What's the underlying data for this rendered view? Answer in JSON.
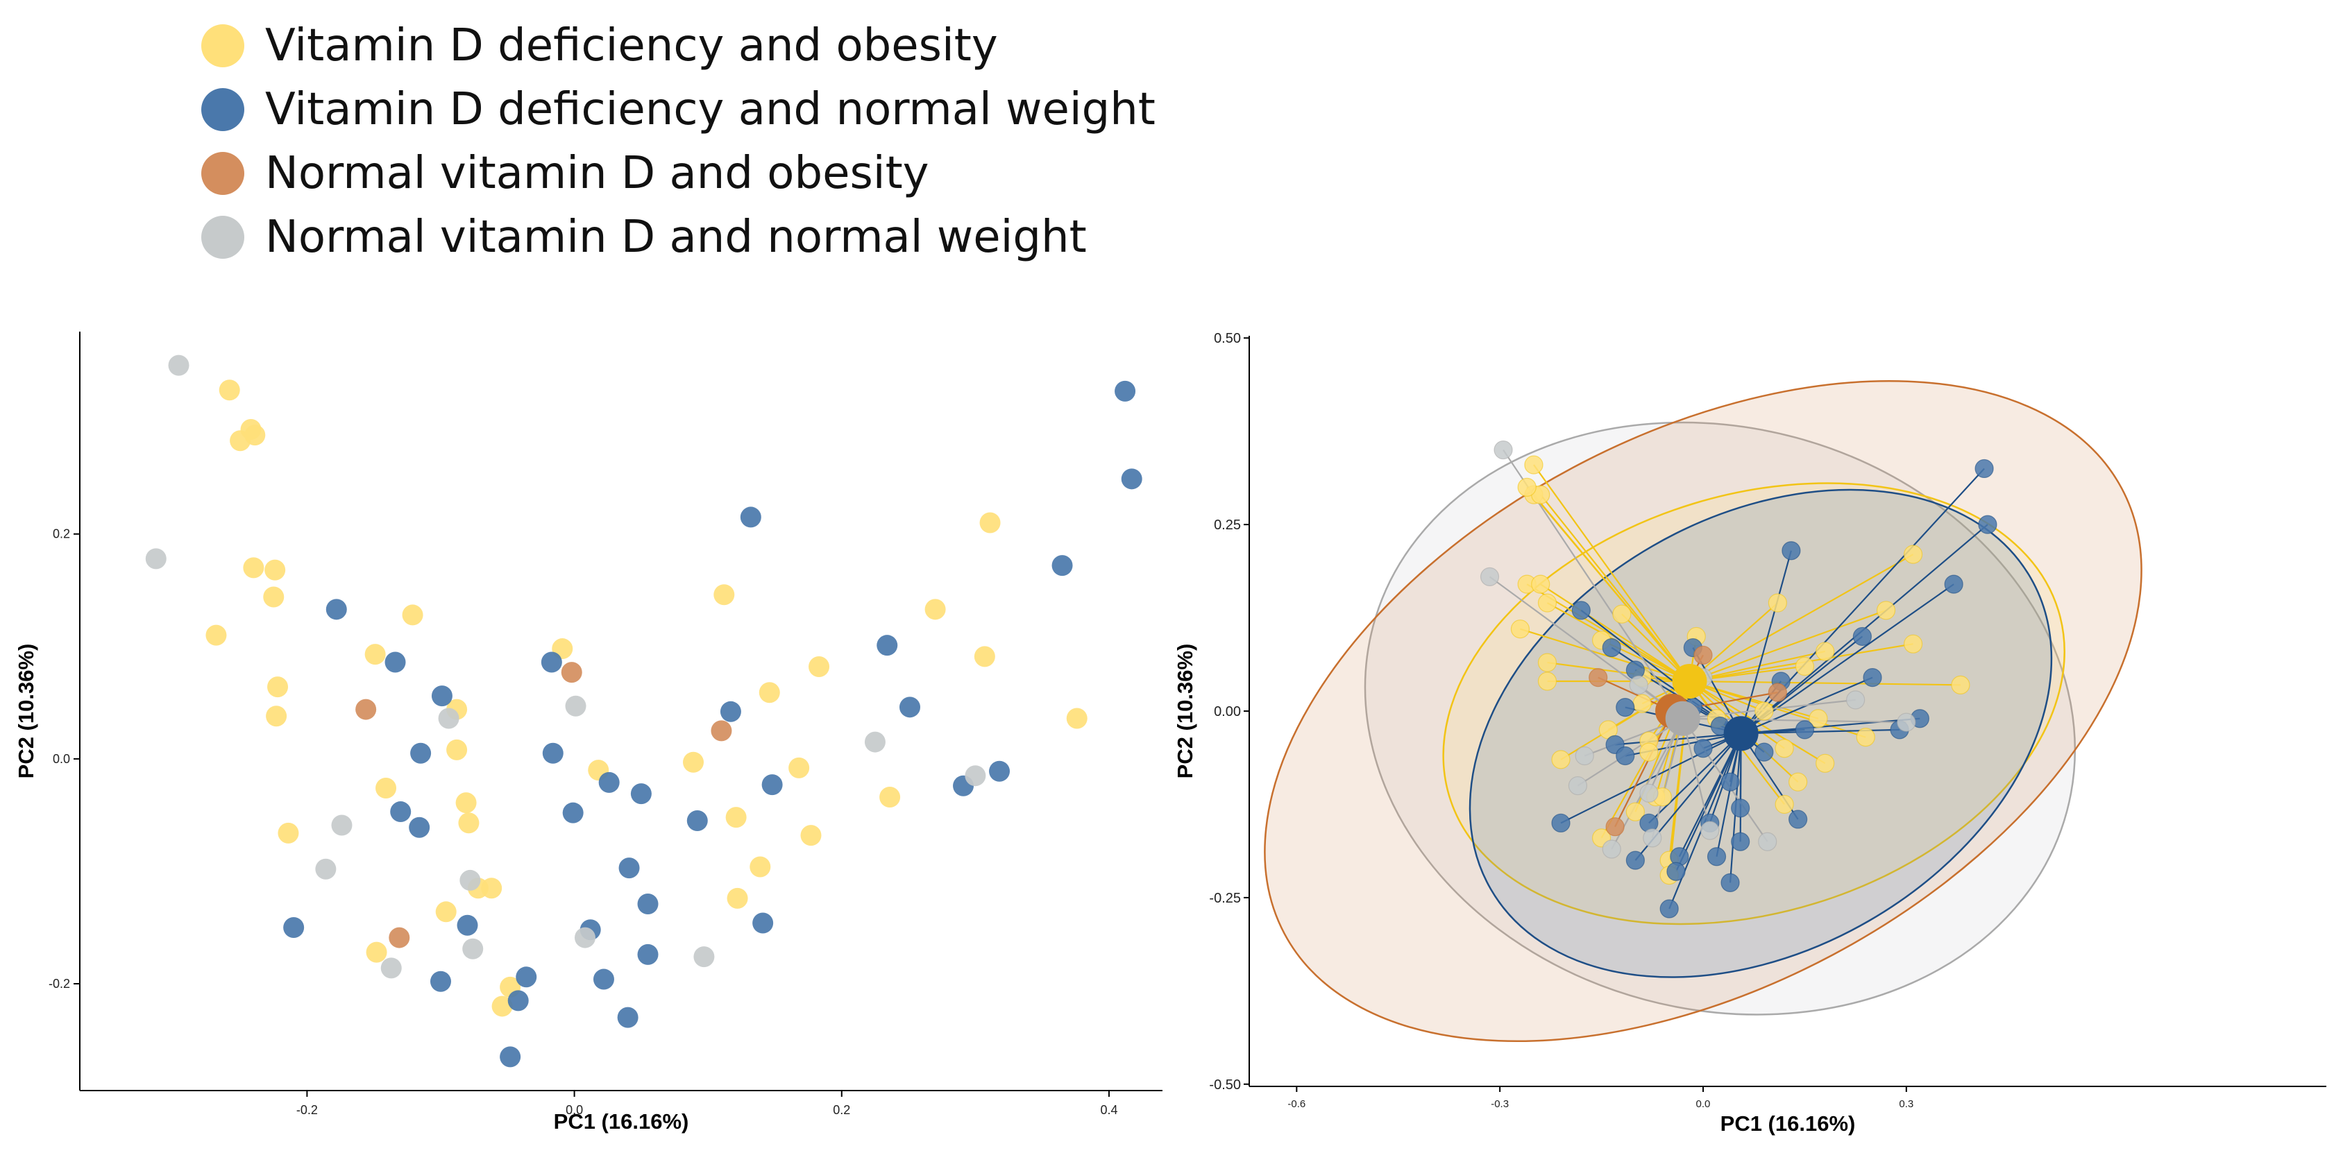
{
  "colors": {
    "vd_obese": "#FFE07A",
    "vd_normal": "#4A78AB",
    "nv_obese": "#D48E5E",
    "nv_normal": "#C6CACB",
    "vd_obese_line": "#F2C416",
    "vd_normal_line": "#1E4E86",
    "nv_obese_line": "#C8702E",
    "nv_normal_line": "#AAAAAA"
  },
  "legend": {
    "items": [
      {
        "label": "Vitamin D deficiency and obesity",
        "color": "#FFE07A"
      },
      {
        "label": "Vitamin D deficiency and normal weight",
        "color": "#4A78AB"
      },
      {
        "label": "Normal vitamin D and obesity",
        "color": "#D48E5E"
      },
      {
        "label": "Normal vitamin D and normal weight",
        "color": "#C6CACB"
      }
    ]
  },
  "chart_data": [
    {
      "type": "scatter",
      "title": "",
      "xlabel": "PC1 (16.16%)",
      "ylabel": "PC2 (10.36%)",
      "xlim": [
        -0.37,
        0.44
      ],
      "ylim": [
        -0.295,
        0.38
      ],
      "xticks": [
        -0.2,
        0.0,
        0.2,
        0.4
      ],
      "xtick_labels": [
        "-0.2",
        "0.0",
        "0.2",
        "0.4"
      ],
      "yticks": [
        -0.2,
        0.0,
        0.2
      ],
      "ytick_labels": [
        "-0.2",
        "0.0",
        "0.2"
      ],
      "series": [
        {
          "name": "Vitamin D deficiency and obesity",
          "color_key": "vd_obese",
          "points": [
            [
              -0.258,
              0.328
            ],
            [
              -0.25,
              0.283
            ],
            [
              -0.242,
              0.293
            ],
            [
              -0.239,
              0.288
            ],
            [
              -0.24,
              0.17
            ],
            [
              -0.224,
              0.168
            ],
            [
              -0.225,
              0.144
            ],
            [
              -0.268,
              0.11
            ],
            [
              -0.222,
              0.064
            ],
            [
              -0.223,
              0.038
            ],
            [
              -0.214,
              -0.066
            ],
            [
              -0.121,
              0.128
            ],
            [
              -0.149,
              0.093
            ],
            [
              -0.088,
              0.044
            ],
            [
              -0.088,
              0.008
            ],
            [
              -0.141,
              -0.026
            ],
            [
              -0.081,
              -0.039
            ],
            [
              -0.079,
              -0.057
            ],
            [
              -0.072,
              -0.115
            ],
            [
              -0.062,
              -0.115
            ],
            [
              -0.096,
              -0.136
            ],
            [
              -0.148,
              -0.172
            ],
            [
              -0.048,
              -0.203
            ],
            [
              -0.054,
              -0.22
            ],
            [
              -0.009,
              0.098
            ],
            [
              0.018,
              -0.01
            ],
            [
              0.089,
              -0.003
            ],
            [
              0.112,
              0.146
            ],
            [
              0.121,
              -0.052
            ],
            [
              0.122,
              -0.124
            ],
            [
              0.139,
              -0.096
            ],
            [
              0.146,
              0.059
            ],
            [
              0.168,
              -0.008
            ],
            [
              0.177,
              -0.068
            ],
            [
              0.183,
              0.082
            ],
            [
              0.236,
              -0.034
            ],
            [
              0.27,
              0.133
            ],
            [
              0.307,
              0.091
            ],
            [
              0.311,
              0.21
            ],
            [
              0.376,
              0.036
            ]
          ]
        },
        {
          "name": "Vitamin D deficiency and normal weight",
          "color_key": "vd_normal",
          "points": [
            [
              -0.178,
              0.133
            ],
            [
              -0.134,
              0.086
            ],
            [
              -0.099,
              0.056
            ],
            [
              -0.115,
              0.005
            ],
            [
              -0.13,
              -0.047
            ],
            [
              -0.116,
              -0.061
            ],
            [
              -0.21,
              -0.15
            ],
            [
              -0.08,
              -0.148
            ],
            [
              -0.1,
              -0.198
            ],
            [
              -0.036,
              -0.194
            ],
            [
              -0.042,
              -0.215
            ],
            [
              -0.048,
              -0.265
            ],
            [
              -0.017,
              0.086
            ],
            [
              -0.016,
              0.005
            ],
            [
              -0.001,
              -0.048
            ],
            [
              0.026,
              -0.021
            ],
            [
              0.05,
              -0.031
            ],
            [
              0.041,
              -0.097
            ],
            [
              0.055,
              -0.129
            ],
            [
              0.012,
              -0.152
            ],
            [
              0.055,
              -0.174
            ],
            [
              0.022,
              -0.196
            ],
            [
              0.04,
              -0.23
            ],
            [
              0.092,
              -0.055
            ],
            [
              0.117,
              0.042
            ],
            [
              0.132,
              0.215
            ],
            [
              0.148,
              -0.023
            ],
            [
              0.141,
              -0.146
            ],
            [
              0.234,
              0.101
            ],
            [
              0.251,
              0.046
            ],
            [
              0.291,
              -0.024
            ],
            [
              0.318,
              -0.011
            ],
            [
              0.365,
              0.172
            ],
            [
              0.412,
              0.327
            ],
            [
              0.417,
              0.249
            ]
          ]
        },
        {
          "name": "Normal vitamin D and obesity",
          "color_key": "nv_obese",
          "points": [
            [
              -0.156,
              0.044
            ],
            [
              -0.131,
              -0.159
            ],
            [
              -0.002,
              0.077
            ],
            [
              0.11,
              0.025
            ]
          ]
        },
        {
          "name": "Normal vitamin D and normal weight",
          "color_key": "nv_normal",
          "points": [
            [
              -0.296,
              0.35
            ],
            [
              -0.313,
              0.178
            ],
            [
              -0.094,
              0.036
            ],
            [
              -0.174,
              -0.059
            ],
            [
              -0.186,
              -0.098
            ],
            [
              -0.137,
              -0.186
            ],
            [
              -0.078,
              -0.108
            ],
            [
              -0.076,
              -0.169
            ],
            [
              0.001,
              0.047
            ],
            [
              0.008,
              -0.159
            ],
            [
              0.097,
              -0.176
            ],
            [
              0.225,
              0.015
            ],
            [
              0.3,
              -0.015
            ]
          ]
        }
      ]
    },
    {
      "type": "scatter",
      "title": "",
      "xlabel": "PC1 (16.16%)",
      "ylabel": "PC2 (10.36%)",
      "xlim": [
        -0.67,
        0.92
      ],
      "ylim": [
        -0.503,
        0.503
      ],
      "xticks": [
        -0.6,
        -0.3,
        0.0,
        0.3
      ],
      "xtick_labels": [
        "-0.6",
        "-0.3",
        "0.0",
        "0.3"
      ],
      "yticks": [
        0.5,
        0.25,
        0.0,
        -0.25,
        -0.5
      ],
      "ytick_labels": [
        "0.50",
        "0.25",
        "0.00",
        "-0.25",
        "-0.50"
      ],
      "groups": [
        {
          "name": "Vitamin D deficiency and obesity",
          "color_key": "vd_obese",
          "line_key": "vd_obese_line",
          "centroid": [
            -0.02,
            0.04
          ],
          "ellipse": {
            "center": [
              0.075,
              0.01
            ],
            "rx": 0.47,
            "ry": 0.28,
            "angle": 17
          }
        },
        {
          "name": "Vitamin D deficiency and normal weight",
          "color_key": "vd_normal",
          "line_key": "vd_normal_line",
          "centroid": [
            0.056,
            -0.03
          ],
          "ellipse": {
            "center": [
              0.085,
              -0.03
            ],
            "rx": 0.46,
            "ry": 0.29,
            "angle": 30
          }
        },
        {
          "name": "Normal vitamin D and obesity",
          "color_key": "nv_obese",
          "line_key": "nv_obese_line",
          "centroid": [
            -0.045,
            0.0
          ],
          "ellipse": {
            "center": [
              0.0,
              0.0
            ],
            "rx": 0.7,
            "ry": 0.37,
            "angle": 28
          }
        },
        {
          "name": "Normal vitamin D and normal weight",
          "color_key": "nv_normal",
          "line_key": "nv_normal_line",
          "centroid": [
            -0.03,
            -0.01
          ],
          "ellipse": {
            "center": [
              0.025,
              -0.01
            ],
            "rx": 0.53,
            "ry": 0.39,
            "angle": -15
          }
        }
      ],
      "series": [
        {
          "name": "Vitamin D deficiency and obesity",
          "color_key": "vd_obese",
          "points": [
            [
              -0.25,
              0.33
            ],
            [
              -0.25,
              0.29
            ],
            [
              -0.24,
              0.29
            ],
            [
              -0.26,
              0.3
            ],
            [
              -0.26,
              0.17
            ],
            [
              -0.24,
              0.17
            ],
            [
              -0.23,
              0.145
            ],
            [
              -0.27,
              0.11
            ],
            [
              -0.23,
              0.065
            ],
            [
              -0.23,
              0.04
            ],
            [
              -0.21,
              -0.065
            ],
            [
              -0.12,
              0.13
            ],
            [
              -0.15,
              0.095
            ],
            [
              -0.09,
              0.045
            ],
            [
              -0.09,
              0.01
            ],
            [
              -0.14,
              -0.025
            ],
            [
              -0.08,
              -0.04
            ],
            [
              -0.08,
              -0.055
            ],
            [
              -0.07,
              -0.115
            ],
            [
              -0.06,
              -0.115
            ],
            [
              -0.1,
              -0.135
            ],
            [
              -0.15,
              -0.17
            ],
            [
              -0.05,
              -0.2
            ],
            [
              -0.05,
              -0.22
            ],
            [
              -0.01,
              0.1
            ],
            [
              0.02,
              -0.01
            ],
            [
              0.09,
              0.0
            ],
            [
              0.11,
              0.145
            ],
            [
              0.12,
              -0.05
            ],
            [
              0.12,
              -0.125
            ],
            [
              0.14,
              -0.095
            ],
            [
              0.15,
              0.06
            ],
            [
              0.17,
              -0.01
            ],
            [
              0.18,
              -0.07
            ],
            [
              0.18,
              0.08
            ],
            [
              0.24,
              -0.035
            ],
            [
              0.27,
              0.135
            ],
            [
              0.31,
              0.09
            ],
            [
              0.31,
              0.21
            ],
            [
              0.38,
              0.035
            ]
          ]
        },
        {
          "name": "Vitamin D deficiency and normal weight",
          "color_key": "vd_normal",
          "points": [
            [
              -0.18,
              0.135
            ],
            [
              -0.135,
              0.085
            ],
            [
              -0.1,
              0.055
            ],
            [
              -0.115,
              0.005
            ],
            [
              -0.13,
              -0.045
            ],
            [
              -0.115,
              -0.06
            ],
            [
              -0.21,
              -0.15
            ],
            [
              -0.08,
              -0.15
            ],
            [
              -0.1,
              -0.2
            ],
            [
              -0.035,
              -0.195
            ],
            [
              -0.04,
              -0.215
            ],
            [
              -0.05,
              -0.265
            ],
            [
              -0.015,
              0.085
            ],
            [
              -0.015,
              0.005
            ],
            [
              0.0,
              -0.05
            ],
            [
              0.025,
              -0.02
            ],
            [
              0.05,
              -0.03
            ],
            [
              0.04,
              -0.095
            ],
            [
              0.055,
              -0.13
            ],
            [
              0.01,
              -0.15
            ],
            [
              0.055,
              -0.175
            ],
            [
              0.02,
              -0.195
            ],
            [
              0.04,
              -0.23
            ],
            [
              0.09,
              -0.055
            ],
            [
              0.115,
              0.04
            ],
            [
              0.13,
              0.215
            ],
            [
              0.15,
              -0.025
            ],
            [
              0.14,
              -0.145
            ],
            [
              0.235,
              0.1
            ],
            [
              0.25,
              0.045
            ],
            [
              0.29,
              -0.025
            ],
            [
              0.32,
              -0.01
            ],
            [
              0.37,
              0.17
            ],
            [
              0.415,
              0.325
            ],
            [
              0.42,
              0.25
            ]
          ]
        },
        {
          "name": "Normal vitamin D and obesity",
          "color_key": "nv_obese",
          "points": [
            [
              -0.155,
              0.045
            ],
            [
              -0.13,
              -0.155
            ],
            [
              0.0,
              0.075
            ],
            [
              0.11,
              0.025
            ]
          ]
        },
        {
          "name": "Normal vitamin D and normal weight",
          "color_key": "nv_normal",
          "points": [
            [
              -0.295,
              0.35
            ],
            [
              -0.315,
              0.18
            ],
            [
              -0.095,
              0.035
            ],
            [
              -0.175,
              -0.06
            ],
            [
              -0.185,
              -0.1
            ],
            [
              -0.135,
              -0.185
            ],
            [
              -0.08,
              -0.11
            ],
            [
              -0.075,
              -0.17
            ],
            [
              0.0,
              0.045
            ],
            [
              0.01,
              -0.16
            ],
            [
              0.095,
              -0.175
            ],
            [
              0.225,
              0.015
            ],
            [
              0.3,
              -0.015
            ]
          ]
        }
      ]
    }
  ]
}
